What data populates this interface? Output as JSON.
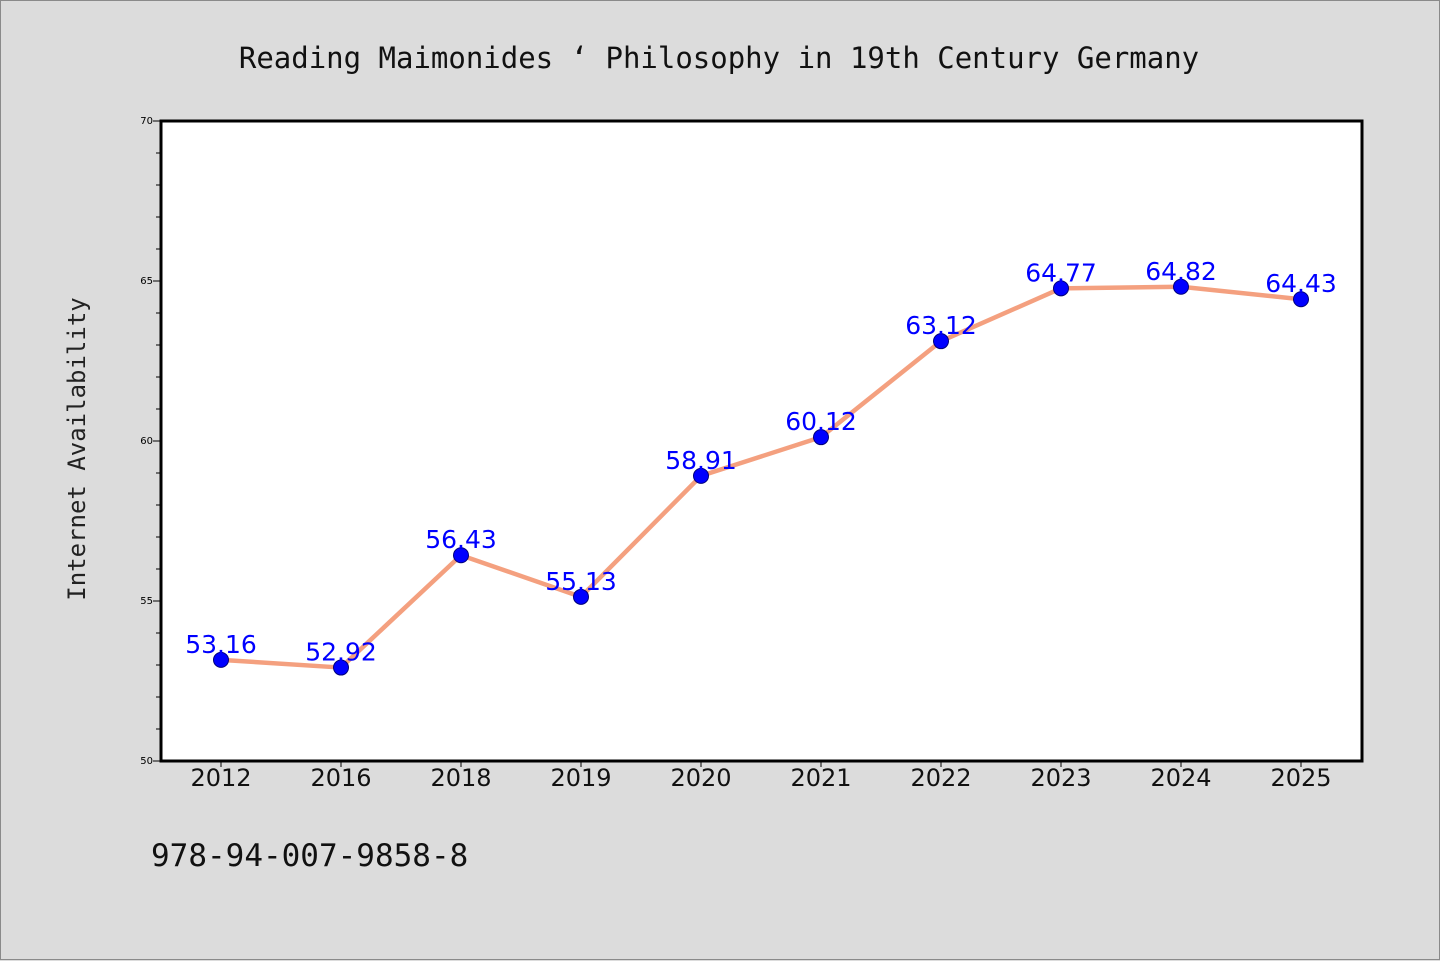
{
  "chart_data": {
    "type": "line",
    "title": "Reading Maimonides ‘ Philosophy in 19th Century Germany",
    "xlabel": "",
    "ylabel": "Internet Availability",
    "categories": [
      "2012",
      "2016",
      "2018",
      "2019",
      "2020",
      "2021",
      "2022",
      "2023",
      "2024",
      "2025"
    ],
    "series": [
      {
        "values": [
          53.16,
          52.92,
          56.43,
          55.13,
          58.91,
          60.12,
          63.12,
          64.77,
          64.82,
          64.43
        ],
        "data_labels": [
          "53.16",
          "52.92",
          "56.43",
          "55.13",
          "58.91",
          "60.12",
          "63.12",
          "64.77",
          "64.82",
          "64.43"
        ],
        "line_color": "#f4a07f",
        "marker_color": "#0000ff"
      }
    ],
    "ylim": [
      50,
      70
    ],
    "yticks": [
      "50",
      "55",
      "60",
      "65",
      "70"
    ],
    "grid": false,
    "legend": "none"
  },
  "footer": {
    "isbn": "978-94-007-9858-8"
  },
  "colors": {
    "background": "#dcdcdc",
    "plot_background": "#ffffff",
    "data_label": "#0000ff"
  }
}
